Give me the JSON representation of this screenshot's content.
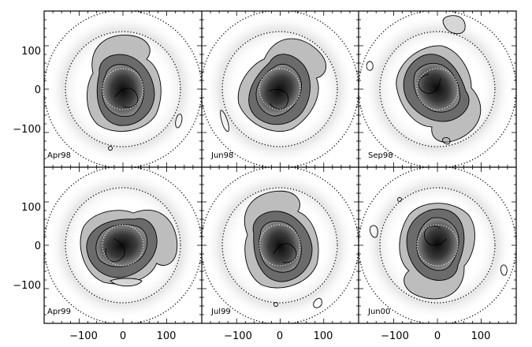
{
  "figure": {
    "panels": [
      {
        "label": "Apr98",
        "row": 0,
        "col": 0,
        "rot": 0
      },
      {
        "label": "Jun98",
        "row": 0,
        "col": 1,
        "rot": 35
      },
      {
        "label": "Sep98",
        "row": 0,
        "col": 2,
        "rot": 150
      },
      {
        "label": "Apr99",
        "row": 1,
        "col": 0,
        "rot": 80
      },
      {
        "label": "Jul99",
        "row": 1,
        "col": 1,
        "rot": -10
      },
      {
        "label": "Jun00",
        "row": 1,
        "col": 2,
        "rot": 190
      }
    ],
    "x_ticks": [
      [
        "−100",
        "0",
        "100"
      ],
      [
        "−100",
        "0",
        "100"
      ],
      [
        "−100",
        "0",
        "100"
      ]
    ],
    "y_ticks": [
      [
        "100",
        "0",
        "−100"
      ],
      [
        "100",
        "0",
        "−100"
      ]
    ],
    "axis_range": [
      -180,
      180
    ],
    "tick_values": [
      -100,
      0,
      100
    ],
    "colormap": "grayscale",
    "contours": true,
    "dotted_circle_radii": [
      75,
      150
    ]
  }
}
